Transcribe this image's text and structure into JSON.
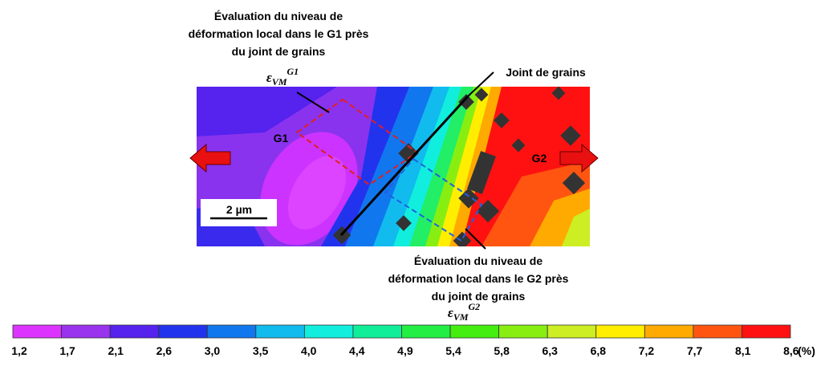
{
  "annotations": {
    "g1_eval": [
      "Évaluation du niveau de",
      "déformation local dans le G1 près",
      "du joint de grains"
    ],
    "g1_symbol": {
      "base": "ε",
      "sub": "VM",
      "sup": "G1"
    },
    "joint": "Joint de grains",
    "g2_eval": [
      "Évaluation du niveau de",
      "déformation local dans le G2 près",
      "du joint de grains"
    ],
    "g2_symbol": {
      "base": "ε",
      "sub": "VM",
      "sup": "G2"
    }
  },
  "labels": {
    "g1": "G1",
    "g2": "G2",
    "scale": "2 µm"
  },
  "colorbar": {
    "colors": [
      "#dd33ff",
      "#9933ee",
      "#5522ee",
      "#2233ee",
      "#1177ee",
      "#11bbee",
      "#11eedd",
      "#11ee99",
      "#22ee44",
      "#44ee11",
      "#88ee11",
      "#ccee22",
      "#ffee00",
      "#ffaa00",
      "#ff5511",
      "#ff1111"
    ],
    "labels": [
      "1,2",
      "1,7",
      "2,1",
      "2,6",
      "3,0",
      "3,5",
      "4,0",
      "4,4",
      "4,9",
      "5,4",
      "5,8",
      "6,3",
      "6,8",
      "7,2",
      "7,7",
      "8,1",
      "8,6"
    ],
    "unit": "(%)"
  }
}
